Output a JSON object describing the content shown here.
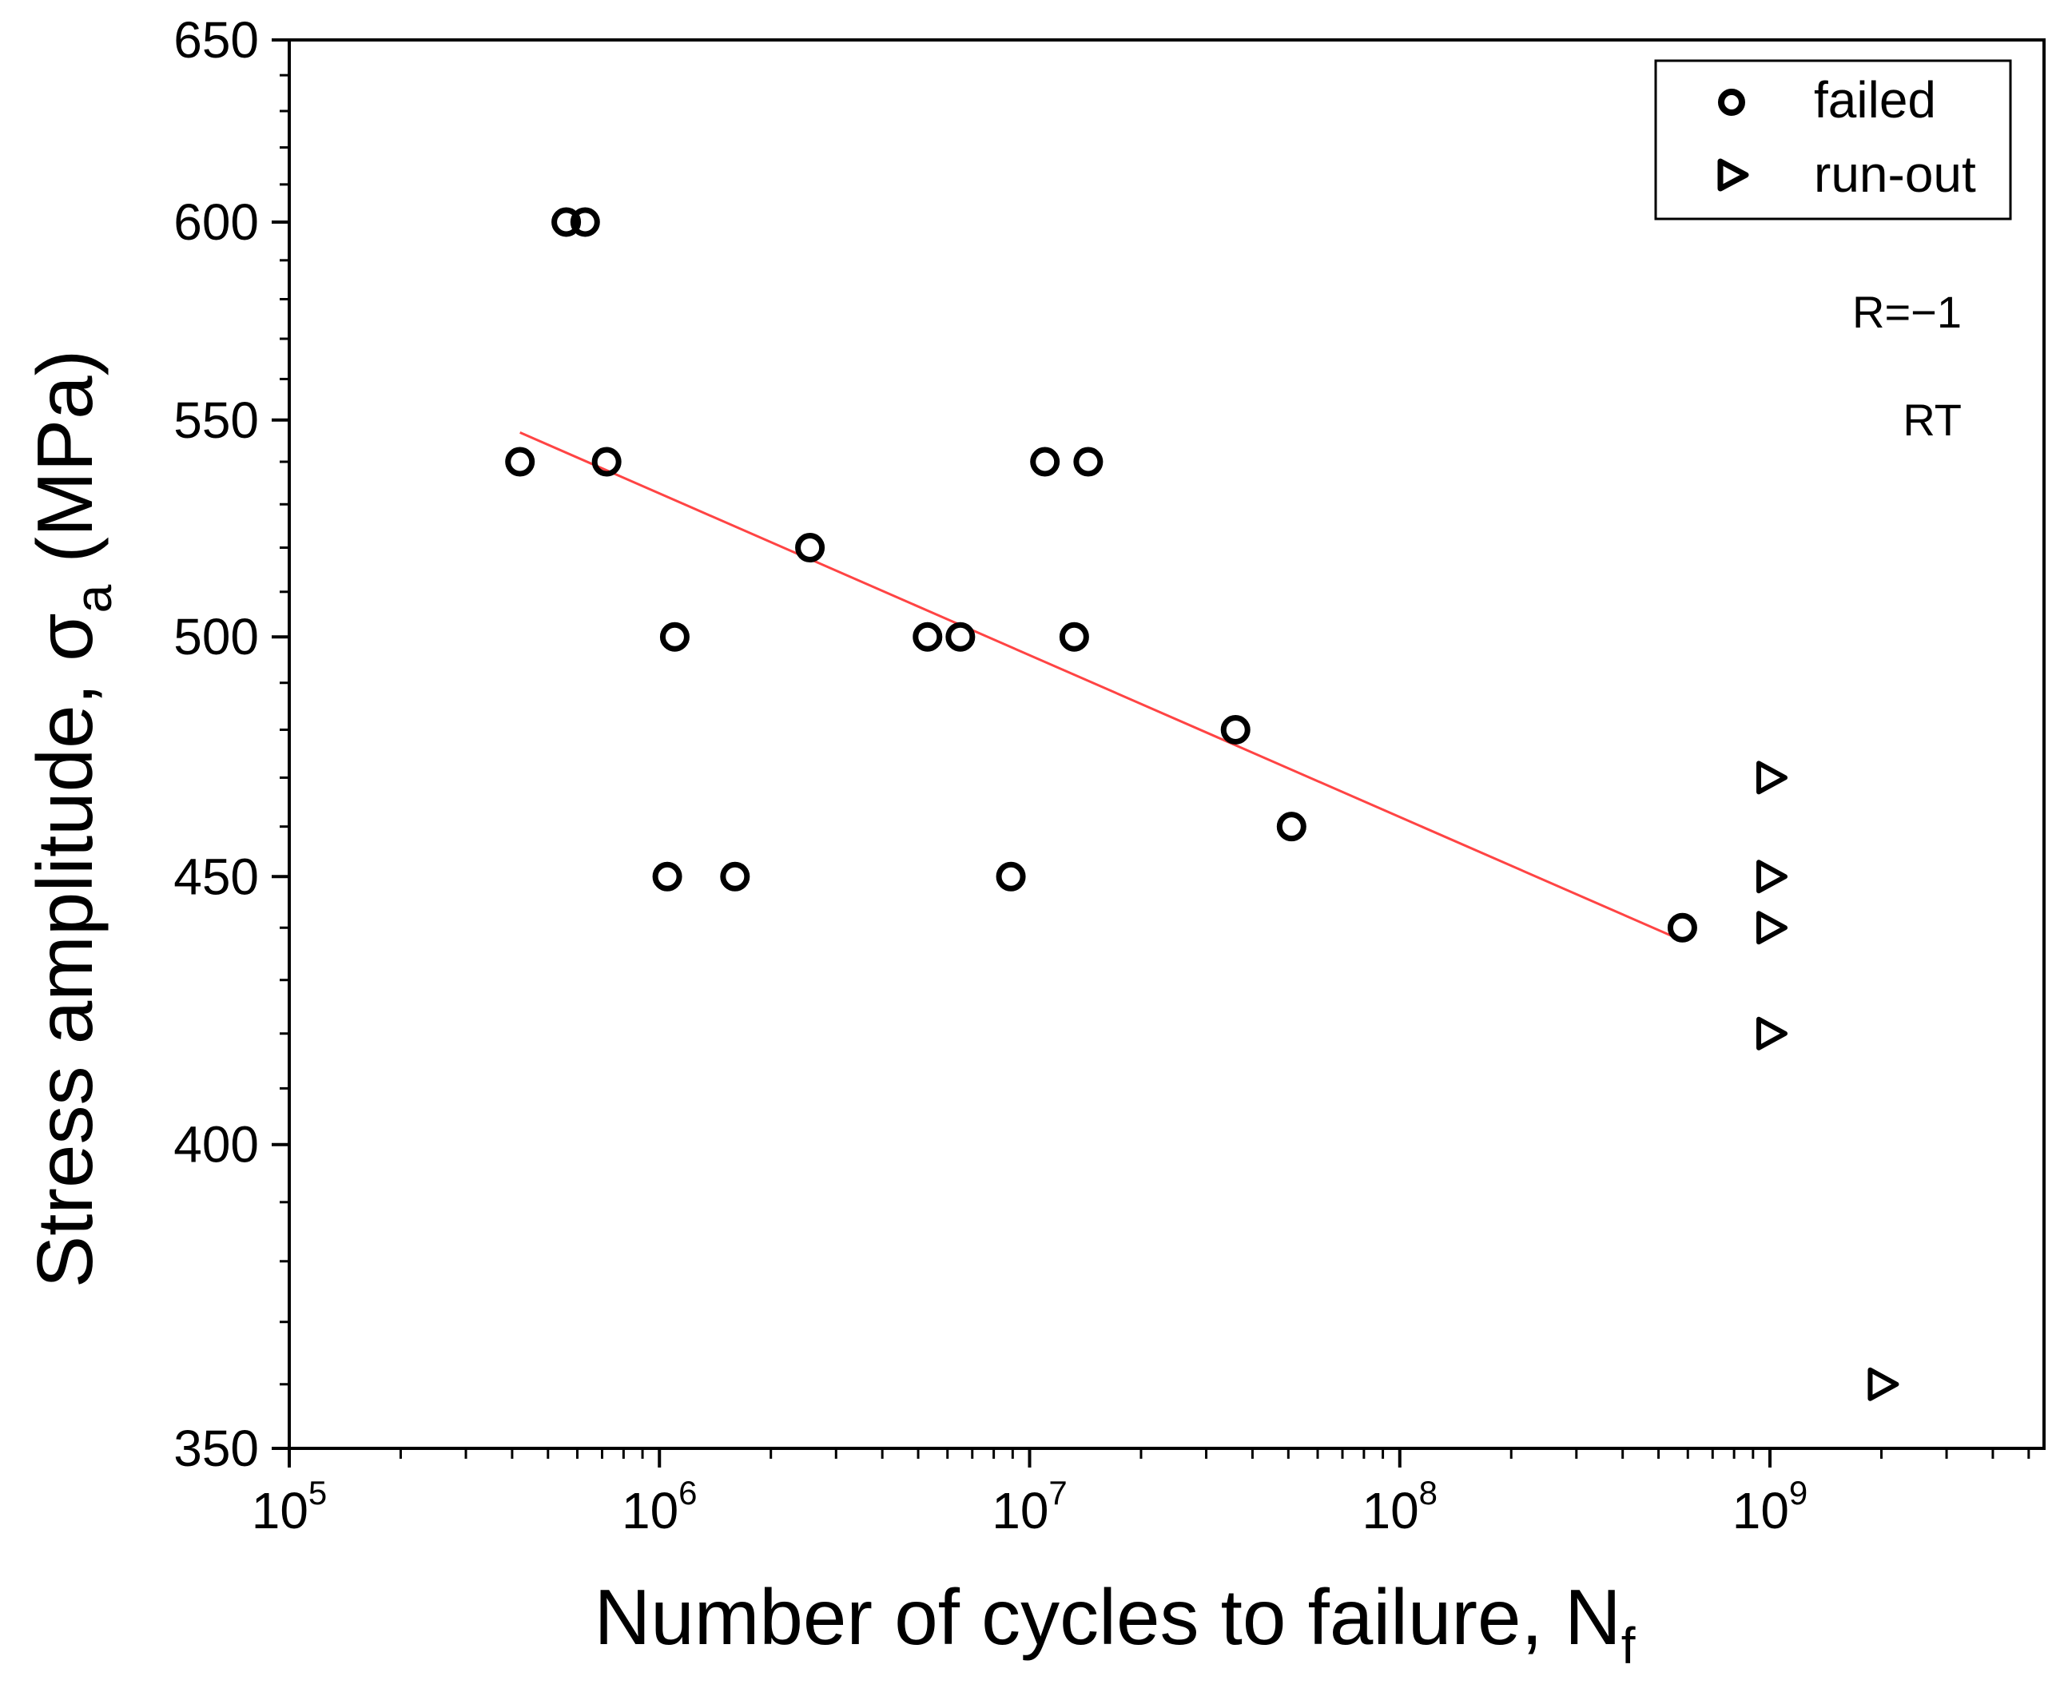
{
  "chart_data": {
    "type": "scatter",
    "title": "",
    "xlabel": "Number of cycles to failure, N",
    "xlabel_subscript": "f",
    "ylabel": "Stress amplitude, σ",
    "ylabel_subscript": "a",
    "ylabel_unit": " (MPa)",
    "xscale": "log",
    "yscale": "log",
    "xlim": [
      100000,
      5500000000
    ],
    "ylim": [
      350,
      650
    ],
    "x_ticks": [
      {
        "value": 100000,
        "base": "10",
        "exp": "5"
      },
      {
        "value": 1000000,
        "base": "10",
        "exp": "6"
      },
      {
        "value": 10000000,
        "base": "10",
        "exp": "7"
      },
      {
        "value": 100000000,
        "base": "10",
        "exp": "8"
      },
      {
        "value": 1000000000,
        "base": "10",
        "exp": "9"
      }
    ],
    "y_ticks": [
      {
        "value": 350,
        "label": "350"
      },
      {
        "value": 400,
        "label": "400"
      },
      {
        "value": 450,
        "label": "450"
      },
      {
        "value": 500,
        "label": "500"
      },
      {
        "value": 550,
        "label": "550"
      },
      {
        "value": 600,
        "label": "600"
      },
      {
        "value": 650,
        "label": "650"
      }
    ],
    "series": [
      {
        "name": "failed",
        "marker": "circle",
        "points": [
          {
            "x": 420000,
            "y": 540
          },
          {
            "x": 560000,
            "y": 600
          },
          {
            "x": 630000,
            "y": 600
          },
          {
            "x": 720000,
            "y": 540
          },
          {
            "x": 1050000,
            "y": 450
          },
          {
            "x": 1100000,
            "y": 500
          },
          {
            "x": 1600000,
            "y": 450
          },
          {
            "x": 2550000,
            "y": 520
          },
          {
            "x": 5300000,
            "y": 500
          },
          {
            "x": 6500000,
            "y": 500
          },
          {
            "x": 8900000,
            "y": 450
          },
          {
            "x": 11000000,
            "y": 540
          },
          {
            "x": 13200000,
            "y": 500
          },
          {
            "x": 14400000,
            "y": 540
          },
          {
            "x": 36000000,
            "y": 480
          },
          {
            "x": 51000000,
            "y": 460
          },
          {
            "x": 580000000,
            "y": 440
          }
        ]
      },
      {
        "name": "run-out",
        "marker": "triangle-right",
        "points": [
          {
            "x": 1000000000,
            "y": 470
          },
          {
            "x": 1000000000,
            "y": 450
          },
          {
            "x": 1000000000,
            "y": 440
          },
          {
            "x": 1000000000,
            "y": 420
          },
          {
            "x": 2000000000,
            "y": 360
          }
        ]
      }
    ],
    "fit_line": {
      "name": "fit",
      "color": "#ff4444",
      "points": [
        {
          "x": 420000,
          "y": 547
        },
        {
          "x": 560000000,
          "y": 438
        }
      ]
    },
    "legend": {
      "position": "top-right",
      "entries": [
        "failed",
        "run-out"
      ]
    },
    "annotations": [
      "R=−1",
      "RT"
    ],
    "grid": false
  }
}
